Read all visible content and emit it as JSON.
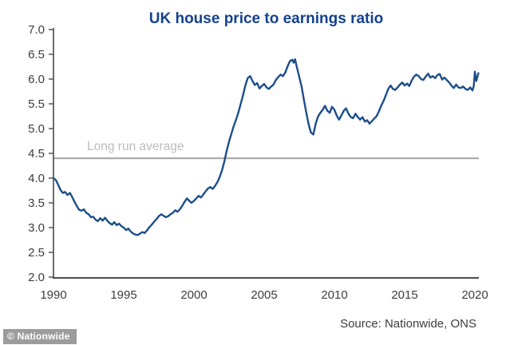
{
  "colors": {
    "background": "#ffffff",
    "title": "#15418e",
    "line": "#1d4e8a",
    "avg_line": "#a8a8a8",
    "avg_label": "#bcbcbc",
    "axis": "#4a4a4a",
    "x_axis": "#555555",
    "tick_text": "#3d3d3d",
    "source_text": "#3d3d3d",
    "badge_bg": "#9c9c9c",
    "badge_text": "#ffffff"
  },
  "chart_data": {
    "type": "line",
    "title": "UK house price to earnings ratio",
    "source": "Source: Nationwide, ONS",
    "watermark": "© Nationwide",
    "xlabel": "",
    "ylabel": "",
    "grid": false,
    "legend": "none",
    "xlim": [
      1990,
      2020
    ],
    "ylim": [
      2.0,
      7.0
    ],
    "x_ticks": [
      1990,
      1995,
      2000,
      2005,
      2010,
      2015,
      2020
    ],
    "y_ticks": [
      7.0,
      6.5,
      6.0,
      5.5,
      5.0,
      4.5,
      4.0,
      3.5,
      3.0,
      2.5,
      2.0
    ],
    "annotation": {
      "label": "Long run average",
      "value": 4.4
    },
    "series": [
      {
        "name": "UK house price to earnings ratio",
        "color": "#1d4e8a",
        "points": [
          [
            1990.0,
            4.0
          ],
          [
            1990.17,
            3.96
          ],
          [
            1990.33,
            3.87
          ],
          [
            1990.5,
            3.76
          ],
          [
            1990.67,
            3.7
          ],
          [
            1990.83,
            3.72
          ],
          [
            1991.0,
            3.66
          ],
          [
            1991.17,
            3.7
          ],
          [
            1991.33,
            3.62
          ],
          [
            1991.5,
            3.52
          ],
          [
            1991.67,
            3.43
          ],
          [
            1991.83,
            3.36
          ],
          [
            1992.0,
            3.34
          ],
          [
            1992.17,
            3.37
          ],
          [
            1992.33,
            3.3
          ],
          [
            1992.5,
            3.27
          ],
          [
            1992.67,
            3.21
          ],
          [
            1992.83,
            3.22
          ],
          [
            1993.0,
            3.16
          ],
          [
            1993.17,
            3.13
          ],
          [
            1993.33,
            3.19
          ],
          [
            1993.5,
            3.14
          ],
          [
            1993.67,
            3.2
          ],
          [
            1993.83,
            3.14
          ],
          [
            1994.0,
            3.09
          ],
          [
            1994.17,
            3.06
          ],
          [
            1994.33,
            3.11
          ],
          [
            1994.5,
            3.05
          ],
          [
            1994.67,
            3.08
          ],
          [
            1994.83,
            3.03
          ],
          [
            1995.0,
            3.0
          ],
          [
            1995.17,
            2.95
          ],
          [
            1995.33,
            2.98
          ],
          [
            1995.5,
            2.92
          ],
          [
            1995.67,
            2.88
          ],
          [
            1995.83,
            2.86
          ],
          [
            1996.0,
            2.85
          ],
          [
            1996.17,
            2.88
          ],
          [
            1996.33,
            2.91
          ],
          [
            1996.5,
            2.89
          ],
          [
            1996.67,
            2.95
          ],
          [
            1996.83,
            3.01
          ],
          [
            1997.0,
            3.06
          ],
          [
            1997.17,
            3.12
          ],
          [
            1997.33,
            3.17
          ],
          [
            1997.5,
            3.23
          ],
          [
            1997.67,
            3.27
          ],
          [
            1997.83,
            3.24
          ],
          [
            1998.0,
            3.21
          ],
          [
            1998.17,
            3.23
          ],
          [
            1998.33,
            3.27
          ],
          [
            1998.5,
            3.3
          ],
          [
            1998.67,
            3.35
          ],
          [
            1998.83,
            3.32
          ],
          [
            1999.0,
            3.37
          ],
          [
            1999.17,
            3.44
          ],
          [
            1999.33,
            3.52
          ],
          [
            1999.5,
            3.59
          ],
          [
            1999.67,
            3.54
          ],
          [
            1999.83,
            3.5
          ],
          [
            2000.0,
            3.54
          ],
          [
            2000.17,
            3.59
          ],
          [
            2000.33,
            3.64
          ],
          [
            2000.5,
            3.61
          ],
          [
            2000.67,
            3.67
          ],
          [
            2000.83,
            3.73
          ],
          [
            2001.0,
            3.79
          ],
          [
            2001.17,
            3.82
          ],
          [
            2001.33,
            3.78
          ],
          [
            2001.5,
            3.84
          ],
          [
            2001.67,
            3.92
          ],
          [
            2001.83,
            4.02
          ],
          [
            2002.0,
            4.16
          ],
          [
            2002.17,
            4.34
          ],
          [
            2002.33,
            4.55
          ],
          [
            2002.5,
            4.74
          ],
          [
            2002.67,
            4.9
          ],
          [
            2002.83,
            5.05
          ],
          [
            2003.0,
            5.18
          ],
          [
            2003.17,
            5.33
          ],
          [
            2003.33,
            5.5
          ],
          [
            2003.5,
            5.68
          ],
          [
            2003.67,
            5.88
          ],
          [
            2003.83,
            6.02
          ],
          [
            2004.0,
            6.06
          ],
          [
            2004.17,
            5.96
          ],
          [
            2004.33,
            5.88
          ],
          [
            2004.5,
            5.92
          ],
          [
            2004.67,
            5.81
          ],
          [
            2004.83,
            5.86
          ],
          [
            2005.0,
            5.9
          ],
          [
            2005.17,
            5.83
          ],
          [
            2005.33,
            5.8
          ],
          [
            2005.5,
            5.85
          ],
          [
            2005.67,
            5.89
          ],
          [
            2005.83,
            5.98
          ],
          [
            2006.0,
            6.04
          ],
          [
            2006.17,
            6.09
          ],
          [
            2006.33,
            6.06
          ],
          [
            2006.5,
            6.13
          ],
          [
            2006.67,
            6.26
          ],
          [
            2006.83,
            6.36
          ],
          [
            2007.0,
            6.39
          ],
          [
            2007.1,
            6.33
          ],
          [
            2007.2,
            6.4
          ],
          [
            2007.33,
            6.24
          ],
          [
            2007.5,
            6.04
          ],
          [
            2007.67,
            5.84
          ],
          [
            2007.83,
            5.58
          ],
          [
            2008.0,
            5.32
          ],
          [
            2008.17,
            5.08
          ],
          [
            2008.33,
            4.92
          ],
          [
            2008.5,
            4.88
          ],
          [
            2008.67,
            5.1
          ],
          [
            2008.83,
            5.24
          ],
          [
            2009.0,
            5.32
          ],
          [
            2009.17,
            5.38
          ],
          [
            2009.33,
            5.46
          ],
          [
            2009.5,
            5.36
          ],
          [
            2009.67,
            5.32
          ],
          [
            2009.83,
            5.44
          ],
          [
            2010.0,
            5.38
          ],
          [
            2010.17,
            5.26
          ],
          [
            2010.33,
            5.18
          ],
          [
            2010.5,
            5.27
          ],
          [
            2010.67,
            5.36
          ],
          [
            2010.83,
            5.41
          ],
          [
            2011.0,
            5.3
          ],
          [
            2011.17,
            5.23
          ],
          [
            2011.33,
            5.21
          ],
          [
            2011.5,
            5.3
          ],
          [
            2011.67,
            5.23
          ],
          [
            2011.83,
            5.18
          ],
          [
            2012.0,
            5.23
          ],
          [
            2012.17,
            5.14
          ],
          [
            2012.33,
            5.17
          ],
          [
            2012.5,
            5.1
          ],
          [
            2012.67,
            5.15
          ],
          [
            2012.83,
            5.2
          ],
          [
            2013.0,
            5.25
          ],
          [
            2013.17,
            5.35
          ],
          [
            2013.33,
            5.46
          ],
          [
            2013.5,
            5.56
          ],
          [
            2013.67,
            5.68
          ],
          [
            2013.83,
            5.8
          ],
          [
            2014.0,
            5.87
          ],
          [
            2014.17,
            5.8
          ],
          [
            2014.33,
            5.78
          ],
          [
            2014.5,
            5.83
          ],
          [
            2014.67,
            5.89
          ],
          [
            2014.83,
            5.93
          ],
          [
            2015.0,
            5.87
          ],
          [
            2015.17,
            5.91
          ],
          [
            2015.33,
            5.86
          ],
          [
            2015.5,
            5.97
          ],
          [
            2015.67,
            6.05
          ],
          [
            2015.83,
            6.09
          ],
          [
            2016.0,
            6.06
          ],
          [
            2016.17,
            6.0
          ],
          [
            2016.33,
            5.98
          ],
          [
            2016.5,
            6.05
          ],
          [
            2016.67,
            6.11
          ],
          [
            2016.83,
            6.03
          ],
          [
            2017.0,
            6.06
          ],
          [
            2017.17,
            6.02
          ],
          [
            2017.33,
            6.08
          ],
          [
            2017.5,
            6.1
          ],
          [
            2017.67,
            5.99
          ],
          [
            2017.83,
            6.03
          ],
          [
            2018.0,
            5.98
          ],
          [
            2018.17,
            5.93
          ],
          [
            2018.33,
            5.87
          ],
          [
            2018.5,
            5.82
          ],
          [
            2018.67,
            5.89
          ],
          [
            2018.83,
            5.83
          ],
          [
            2019.0,
            5.82
          ],
          [
            2019.17,
            5.85
          ],
          [
            2019.33,
            5.8
          ],
          [
            2019.5,
            5.78
          ],
          [
            2019.67,
            5.83
          ],
          [
            2019.83,
            5.77
          ],
          [
            2019.92,
            5.86
          ],
          [
            2020.0,
            6.15
          ],
          [
            2020.1,
            5.96
          ],
          [
            2020.25,
            6.12
          ]
        ]
      }
    ]
  }
}
